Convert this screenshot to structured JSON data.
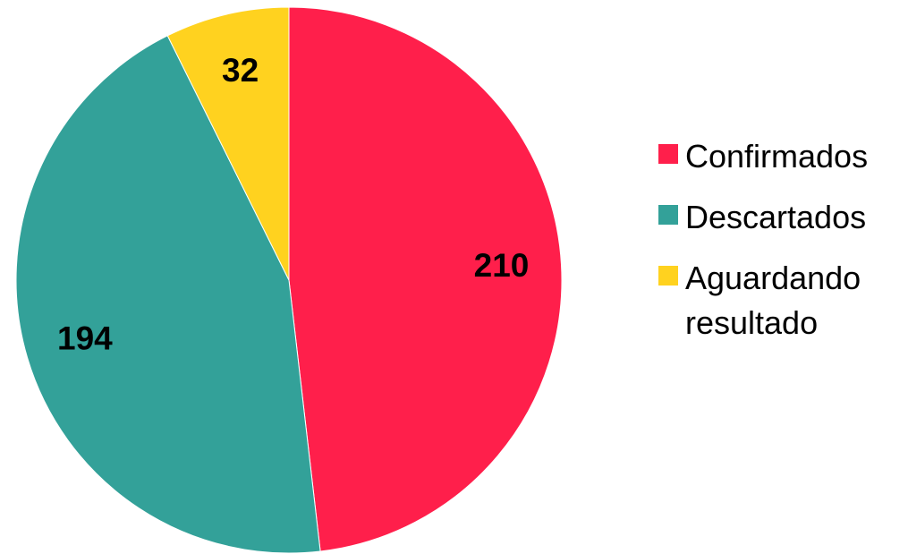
{
  "chart_data": {
    "type": "pie",
    "categories": [
      "Confirmados",
      "Descartados",
      "Aguardando resultado"
    ],
    "values": [
      210,
      194,
      32
    ],
    "colors": [
      "#ff1f4b",
      "#33a199",
      "#ffd21f"
    ],
    "legend": "right"
  }
}
